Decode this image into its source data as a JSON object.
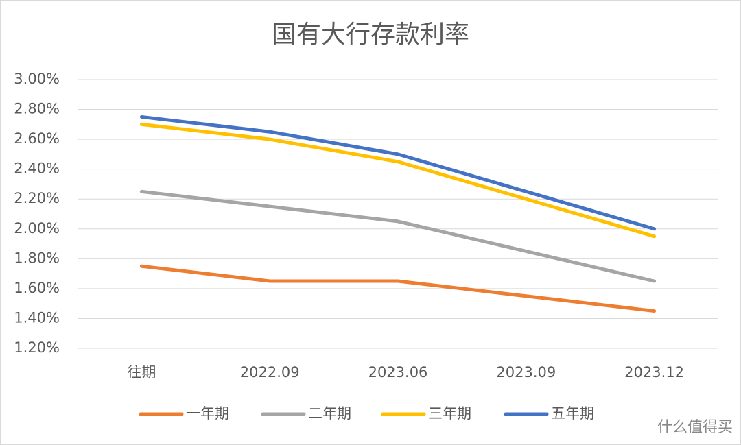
{
  "chart_data": {
    "type": "line",
    "title": "国有大行存款利率",
    "categories": [
      "往期",
      "2022.09",
      "2023.06",
      "2023.09",
      "2023.12"
    ],
    "series": [
      {
        "name": "一年期",
        "color": "#ed7d31",
        "values": [
          1.75,
          1.65,
          1.65,
          1.55,
          1.45
        ]
      },
      {
        "name": "二年期",
        "color": "#a5a5a5",
        "values": [
          2.25,
          2.15,
          2.05,
          1.85,
          1.65
        ]
      },
      {
        "name": "三年期",
        "color": "#ffc000",
        "values": [
          2.7,
          2.6,
          2.45,
          2.2,
          1.95
        ]
      },
      {
        "name": "五年期",
        "color": "#4472c4",
        "values": [
          2.75,
          2.65,
          2.5,
          2.25,
          2.0
        ]
      }
    ],
    "ylim": [
      1.2,
      3.0
    ],
    "yticks": [
      {
        "value": 1.2,
        "label": "1.20%"
      },
      {
        "value": 1.4,
        "label": "1.40%"
      },
      {
        "value": 1.6,
        "label": "1.60%"
      },
      {
        "value": 1.8,
        "label": "1.80%"
      },
      {
        "value": 2.0,
        "label": "2.00%"
      },
      {
        "value": 2.2,
        "label": "2.20%"
      },
      {
        "value": 2.4,
        "label": "2.40%"
      },
      {
        "value": 2.6,
        "label": "2.60%"
      },
      {
        "value": 2.8,
        "label": "2.80%"
      },
      {
        "value": 3.0,
        "label": "3.00%"
      }
    ],
    "grid": true,
    "legend": "bottom"
  },
  "watermark": "什么值得买"
}
